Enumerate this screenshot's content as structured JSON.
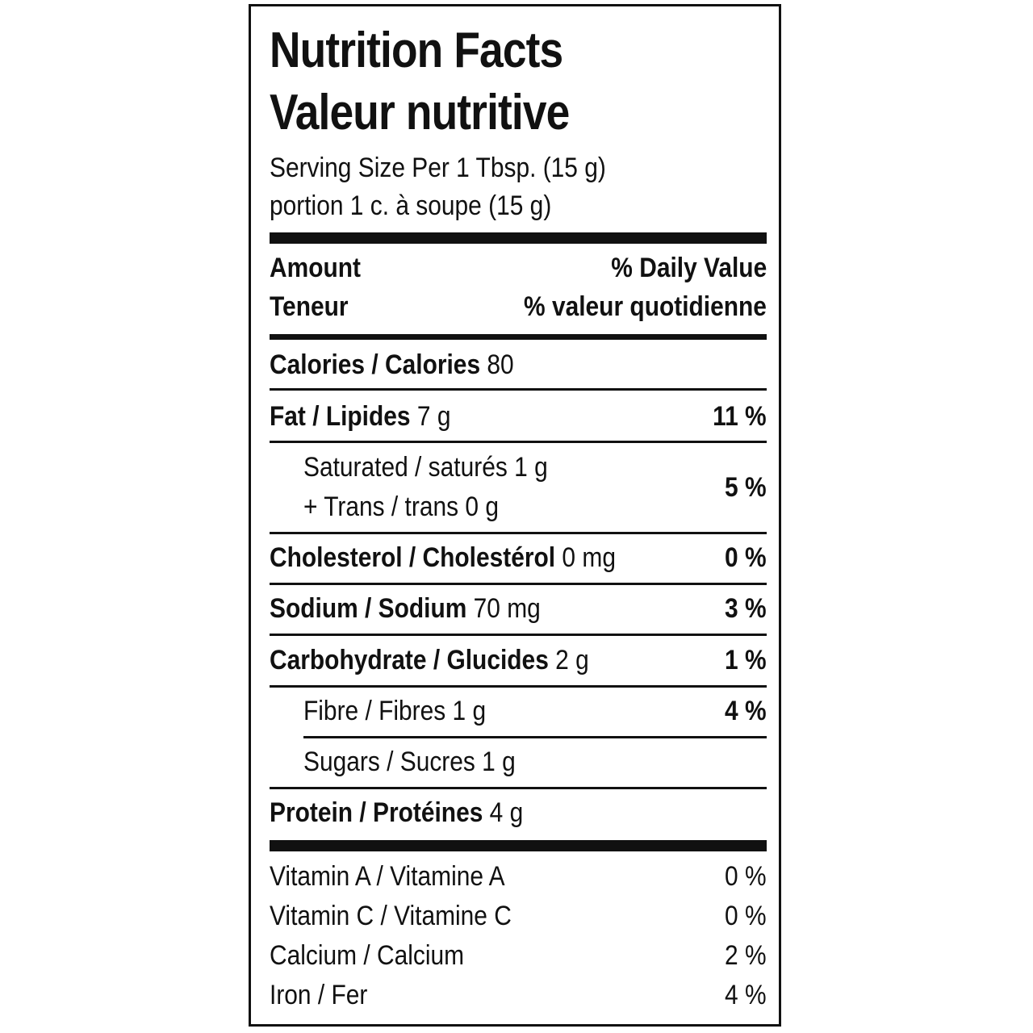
{
  "title_en": "Nutrition Facts",
  "title_fr": "Valeur nutritive",
  "serving_en": "Serving Size Per 1 Tbsp. (15 g)",
  "serving_fr": "portion 1 c. à soupe (15 g)",
  "header": {
    "amount": "Amount",
    "teneur": "Teneur",
    "dv": "% Daily Value",
    "vq": "% valeur quotidienne"
  },
  "calories": {
    "label": "Calories / Calories",
    "value": "80"
  },
  "rows": [
    {
      "label": "Fat / Lipides",
      "amount": "7 g",
      "dv": "11 %"
    },
    {
      "label": "Saturated / saturés",
      "amount": "1 g",
      "label2": "+ Trans / trans",
      "amount2": "0 g",
      "dv": "5 %"
    },
    {
      "label": "Cholesterol / Cholestérol",
      "amount": "0 mg",
      "dv": "0 %"
    },
    {
      "label": "Sodium / Sodium",
      "amount": "70 mg",
      "dv": "3 %"
    },
    {
      "label": "Carbohydrate / Glucides",
      "amount": "2 g",
      "dv": "1 %"
    },
    {
      "label": "Fibre / Fibres",
      "amount": "1 g",
      "dv": "4 %"
    },
    {
      "label": "Sugars / Sucres",
      "amount": "1 g"
    },
    {
      "label": "Protein / Protéines",
      "amount": "4 g"
    }
  ],
  "vitamins": [
    {
      "label": "Vitamin A / Vitamine A",
      "dv": "0 %"
    },
    {
      "label": "Vitamin C / Vitamine C",
      "dv": "0 %"
    },
    {
      "label": "Calcium / Calcium",
      "dv": "2 %"
    },
    {
      "label": "Iron / Fer",
      "dv": "4 %"
    }
  ]
}
